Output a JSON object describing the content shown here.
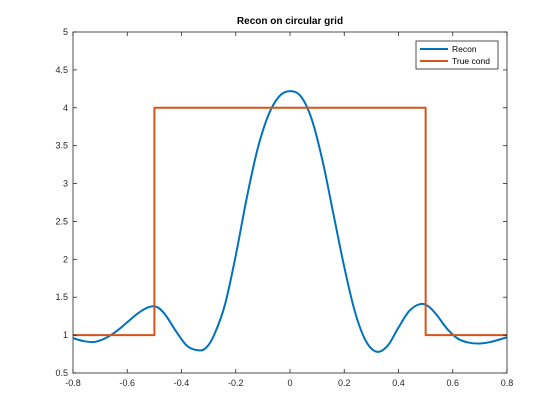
{
  "chart_data": {
    "type": "line",
    "title": "Recon on circular grid",
    "xlabel": "",
    "ylabel": "",
    "xlim": [
      -0.8,
      0.8
    ],
    "ylim": [
      0.5,
      5
    ],
    "xticks": [
      -0.8,
      -0.6,
      -0.4,
      -0.2,
      0,
      0.2,
      0.4,
      0.6,
      0.8
    ],
    "xtick_labels": [
      "-0.8",
      "-0.6",
      "-0.4",
      "-0.2",
      "0",
      "0.2",
      "0.4",
      "0.6",
      "0.8"
    ],
    "yticks": [
      0.5,
      1,
      1.5,
      2,
      2.5,
      3,
      3.5,
      4,
      4.5,
      5
    ],
    "ytick_labels": [
      "0.5",
      "1",
      "1.5",
      "2",
      "2.5",
      "3",
      "3.5",
      "4",
      "4.5",
      "5"
    ],
    "grid": false,
    "legend_position": "top-right",
    "series": [
      {
        "name": "Recon",
        "color": "#0072BD",
        "x": [
          -0.8,
          -0.76,
          -0.72,
          -0.68,
          -0.64,
          -0.6,
          -0.56,
          -0.52,
          -0.49,
          -0.46,
          -0.42,
          -0.38,
          -0.34,
          -0.31,
          -0.28,
          -0.24,
          -0.2,
          -0.16,
          -0.12,
          -0.08,
          -0.04,
          0,
          0.04,
          0.08,
          0.12,
          0.16,
          0.2,
          0.24,
          0.28,
          0.32,
          0.36,
          0.4,
          0.44,
          0.48,
          0.51,
          0.54,
          0.58,
          0.62,
          0.66,
          0.7,
          0.74,
          0.78,
          0.8
        ],
        "y": [
          0.96,
          0.92,
          0.91,
          0.96,
          1.05,
          1.17,
          1.29,
          1.37,
          1.37,
          1.27,
          1.05,
          0.86,
          0.8,
          0.83,
          1.0,
          1.4,
          2.05,
          2.8,
          3.45,
          3.9,
          4.15,
          4.22,
          4.15,
          3.85,
          3.3,
          2.6,
          1.9,
          1.3,
          0.92,
          0.78,
          0.86,
          1.1,
          1.32,
          1.41,
          1.38,
          1.27,
          1.08,
          0.95,
          0.9,
          0.89,
          0.91,
          0.95,
          0.97
        ]
      },
      {
        "name": "True cond",
        "color": "#D95319",
        "x": [
          -0.8,
          -0.5,
          -0.5,
          0.5,
          0.5,
          0.8
        ],
        "y": [
          1,
          1,
          4,
          4,
          1,
          1
        ]
      }
    ]
  }
}
